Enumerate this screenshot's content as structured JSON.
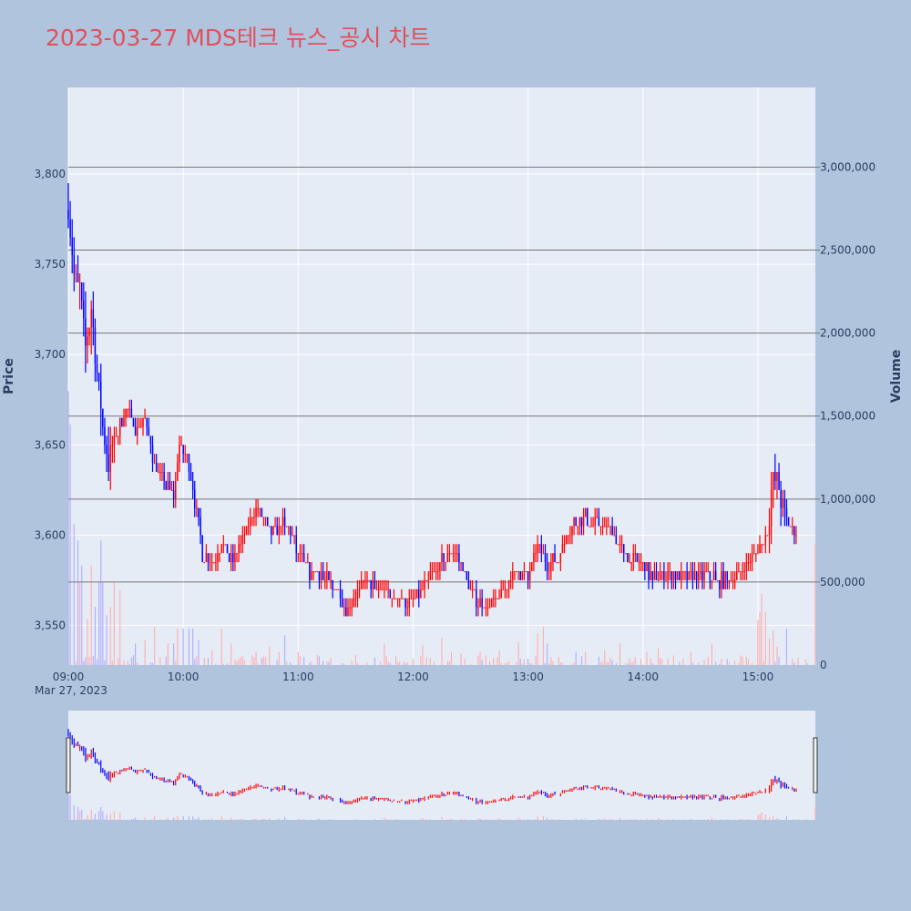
{
  "title": "2023-03-27 MDS테크 뉴스_공시 차트",
  "colors": {
    "up": "#ff0000",
    "down": "#0000ff",
    "volume_up": "#ffb0b0",
    "volume_down": "#b0b0ff",
    "plot_bg": "#e5ecf6",
    "paper_bg": "#b0c4de",
    "title": "#e0505c"
  },
  "chart_data": {
    "type": "candlestick",
    "x_start": "09:00",
    "x_end": "15:30",
    "x_ticks": [
      "09:00",
      "10:00",
      "11:00",
      "12:00",
      "13:00",
      "14:00",
      "15:00"
    ],
    "x_date_label": "Mar 27, 2023",
    "y_label": "Price",
    "y_ticks": [
      3550,
      3600,
      3650,
      3700,
      3750,
      3800
    ],
    "y_tick_labels": [
      "3,550",
      "3,600",
      "3,650",
      "3,700",
      "3,750",
      "3,800"
    ],
    "y_range": [
      3528,
      3848
    ],
    "y2_label": "Volume",
    "y2_ticks": [
      0,
      500000,
      1000000,
      1500000,
      2000000,
      2500000,
      3000000
    ],
    "y2_tick_labels": [
      "0",
      "500,000",
      "1,000,000",
      "1,500,000",
      "2,000,000",
      "2,500,000",
      "3,000,000"
    ],
    "y2_range": [
      0,
      3480000
    ],
    "price_anchors": [
      [
        "09:00",
        3780
      ],
      [
        "09:03",
        3745
      ],
      [
        "09:06",
        3735
      ],
      [
        "09:09",
        3705
      ],
      [
        "09:12",
        3725
      ],
      [
        "09:15",
        3690
      ],
      [
        "09:18",
        3660
      ],
      [
        "09:21",
        3640
      ],
      [
        "09:25",
        3655
      ],
      [
        "09:30",
        3670
      ],
      [
        "09:35",
        3660
      ],
      [
        "09:40",
        3665
      ],
      [
        "09:45",
        3640
      ],
      [
        "09:50",
        3630
      ],
      [
        "09:55",
        3620
      ],
      [
        "09:58",
        3650
      ],
      [
        "10:02",
        3645
      ],
      [
        "10:06",
        3620
      ],
      [
        "10:10",
        3590
      ],
      [
        "10:15",
        3585
      ],
      [
        "10:20",
        3595
      ],
      [
        "10:25",
        3585
      ],
      [
        "10:30",
        3595
      ],
      [
        "10:35",
        3610
      ],
      [
        "10:40",
        3615
      ],
      [
        "10:45",
        3600
      ],
      [
        "10:50",
        3605
      ],
      [
        "10:55",
        3605
      ],
      [
        "11:00",
        3590
      ],
      [
        "11:05",
        3580
      ],
      [
        "11:10",
        3580
      ],
      [
        "11:15",
        3575
      ],
      [
        "11:20",
        3570
      ],
      [
        "11:25",
        3560
      ],
      [
        "11:30",
        3565
      ],
      [
        "11:35",
        3575
      ],
      [
        "11:40",
        3570
      ],
      [
        "11:45",
        3570
      ],
      [
        "11:50",
        3565
      ],
      [
        "11:55",
        3565
      ],
      [
        "12:00",
        3562
      ],
      [
        "12:05",
        3570
      ],
      [
        "12:10",
        3578
      ],
      [
        "12:15",
        3585
      ],
      [
        "12:20",
        3590
      ],
      [
        "12:25",
        3585
      ],
      [
        "12:30",
        3570
      ],
      [
        "12:35",
        3562
      ],
      [
        "12:40",
        3560
      ],
      [
        "12:45",
        3565
      ],
      [
        "12:50",
        3575
      ],
      [
        "12:55",
        3580
      ],
      [
        "13:00",
        3575
      ],
      [
        "13:05",
        3595
      ],
      [
        "13:10",
        3585
      ],
      [
        "13:15",
        3585
      ],
      [
        "13:20",
        3600
      ],
      [
        "13:25",
        3608
      ],
      [
        "13:30",
        3610
      ],
      [
        "13:35",
        3605
      ],
      [
        "13:40",
        3605
      ],
      [
        "13:45",
        3600
      ],
      [
        "13:50",
        3590
      ],
      [
        "13:55",
        3585
      ],
      [
        "14:00",
        3585
      ],
      [
        "14:05",
        3575
      ],
      [
        "14:10",
        3578
      ],
      [
        "14:15",
        3580
      ],
      [
        "14:20",
        3575
      ],
      [
        "14:25",
        3578
      ],
      [
        "14:30",
        3578
      ],
      [
        "14:35",
        3578
      ],
      [
        "14:40",
        3575
      ],
      [
        "14:45",
        3575
      ],
      [
        "14:50",
        3580
      ],
      [
        "14:55",
        3585
      ],
      [
        "15:00",
        3590
      ],
      [
        "15:05",
        3602
      ],
      [
        "15:08",
        3632
      ],
      [
        "15:10",
        3630
      ],
      [
        "15:13",
        3615
      ],
      [
        "15:16",
        3605
      ],
      [
        "15:20",
        3602
      ]
    ],
    "volume_spikes": [
      [
        "09:00",
        1650000
      ],
      [
        "09:01",
        1450000
      ],
      [
        "09:03",
        850000
      ],
      [
        "09:05",
        750000
      ],
      [
        "09:06",
        500000
      ],
      [
        "09:07",
        600000
      ],
      [
        "09:10",
        280000
      ],
      [
        "09:12",
        600000
      ],
      [
        "09:14",
        350000
      ],
      [
        "09:16",
        500000
      ],
      [
        "09:17",
        750000
      ],
      [
        "09:18",
        500000
      ],
      [
        "09:20",
        300000
      ],
      [
        "09:22",
        350000
      ],
      [
        "09:24",
        500000
      ],
      [
        "09:27",
        450000
      ],
      [
        "09:35",
        130000
      ],
      [
        "09:40",
        150000
      ],
      [
        "09:45",
        230000
      ],
      [
        "09:52",
        130000
      ],
      [
        "09:55",
        130000
      ],
      [
        "09:57",
        220000
      ],
      [
        "10:00",
        220000
      ],
      [
        "10:03",
        220000
      ],
      [
        "10:05",
        220000
      ],
      [
        "10:08",
        150000
      ],
      [
        "10:15",
        90000
      ],
      [
        "10:20",
        220000
      ],
      [
        "10:25",
        130000
      ],
      [
        "10:38",
        80000
      ],
      [
        "10:45",
        110000
      ],
      [
        "10:50",
        80000
      ],
      [
        "10:53",
        180000
      ],
      [
        "11:00",
        80000
      ],
      [
        "11:10",
        60000
      ],
      [
        "11:30",
        60000
      ],
      [
        "11:45",
        130000
      ],
      [
        "12:05",
        120000
      ],
      [
        "12:15",
        160000
      ],
      [
        "12:20",
        80000
      ],
      [
        "12:25",
        70000
      ],
      [
        "12:35",
        80000
      ],
      [
        "12:45",
        90000
      ],
      [
        "12:55",
        140000
      ],
      [
        "13:05",
        190000
      ],
      [
        "13:08",
        230000
      ],
      [
        "13:10",
        130000
      ],
      [
        "13:25",
        80000
      ],
      [
        "13:30",
        80000
      ],
      [
        "13:40",
        90000
      ],
      [
        "13:48",
        130000
      ],
      [
        "14:02",
        80000
      ],
      [
        "14:08",
        100000
      ],
      [
        "14:25",
        80000
      ],
      [
        "14:36",
        130000
      ],
      [
        "14:52",
        50000
      ],
      [
        "15:00",
        270000
      ],
      [
        "15:01",
        320000
      ],
      [
        "15:02",
        430000
      ],
      [
        "15:04",
        320000
      ],
      [
        "15:06",
        160000
      ],
      [
        "15:08",
        210000
      ],
      [
        "15:10",
        110000
      ],
      [
        "15:15",
        220000
      ],
      [
        "15:30",
        730000
      ]
    ]
  }
}
